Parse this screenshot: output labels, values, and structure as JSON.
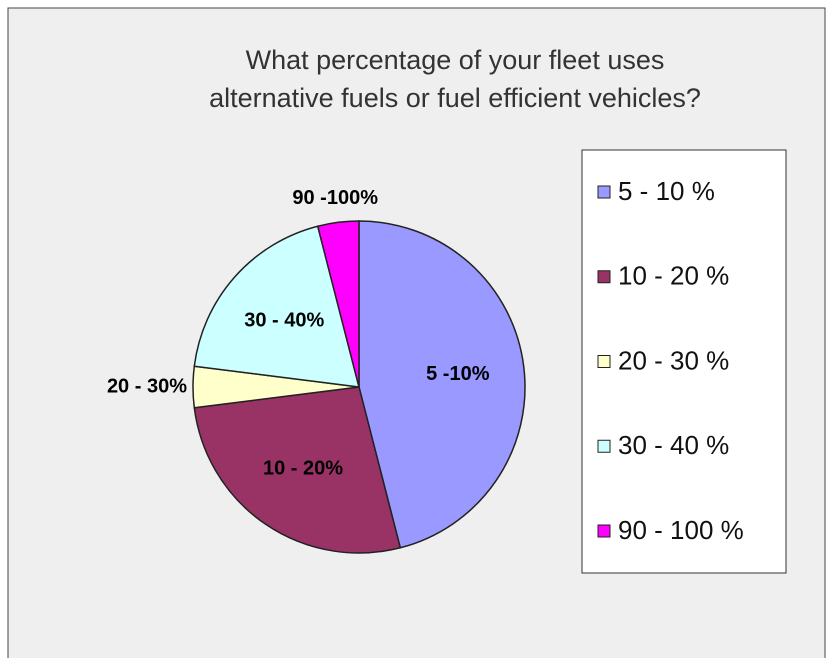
{
  "chart_data": {
    "type": "pie",
    "title": [
      "What percentage of your fleet uses",
      "alternative fuels or fuel efficient vehicles?"
    ],
    "categories": [
      "5 - 10 %",
      "10 - 20 %",
      "20 - 30 %",
      "30 - 40 %",
      "90 - 100 %"
    ],
    "data_labels": [
      "5 -10%",
      "10 - 20%",
      "20 - 30%",
      "30 - 40%",
      "90 -100%"
    ],
    "values": [
      46,
      27,
      4,
      19,
      4
    ],
    "colors": [
      "#9999ff",
      "#993366",
      "#ffffcc",
      "#ccffff",
      "#ff00ff"
    ],
    "legend": "right"
  }
}
